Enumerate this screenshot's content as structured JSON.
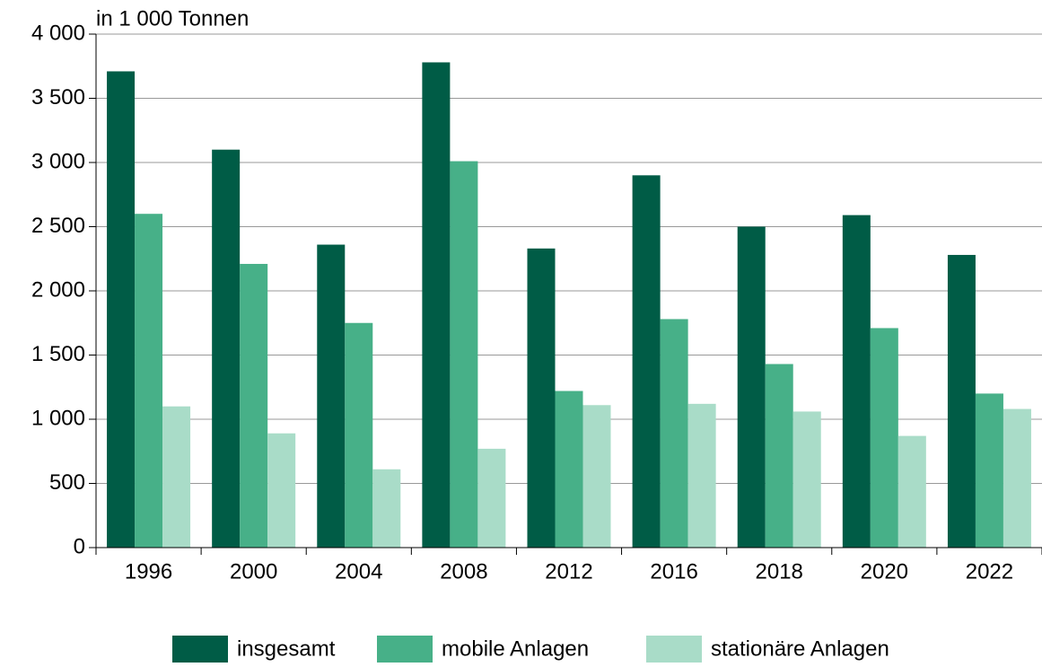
{
  "chart_data": {
    "type": "bar",
    "axis_label": "in 1 000 Tonnen",
    "categories": [
      "1996",
      "2000",
      "2004",
      "2008",
      "2012",
      "2016",
      "2018",
      "2020",
      "2022"
    ],
    "series": [
      {
        "name": "insgesamt",
        "color": "#005c46",
        "values": [
          3710,
          3100,
          2360,
          3780,
          2330,
          2900,
          2500,
          2590,
          2280
        ]
      },
      {
        "name": "mobile Anlagen",
        "color": "#47b088",
        "values": [
          2600,
          2210,
          1750,
          3010,
          1220,
          1780,
          1430,
          1710,
          1200
        ]
      },
      {
        "name": "stationäre Anlagen",
        "color": "#a9dcc8",
        "values": [
          1100,
          890,
          610,
          770,
          1110,
          1120,
          1060,
          870,
          1080
        ]
      }
    ],
    "ylim": [
      0,
      4000
    ],
    "yticks": [
      0,
      500,
      {
        "value": 1000,
        "label": "1 000"
      },
      {
        "value": 1500,
        "label": "1 500"
      },
      {
        "value": 2000,
        "label": "2 000"
      },
      {
        "value": 2500,
        "label": "2 500"
      },
      {
        "value": 3000,
        "label": "3 000"
      },
      {
        "value": 3500,
        "label": "3 500"
      },
      {
        "value": 4000,
        "label": "4 000"
      }
    ],
    "grid": true,
    "legend": "bottom"
  }
}
